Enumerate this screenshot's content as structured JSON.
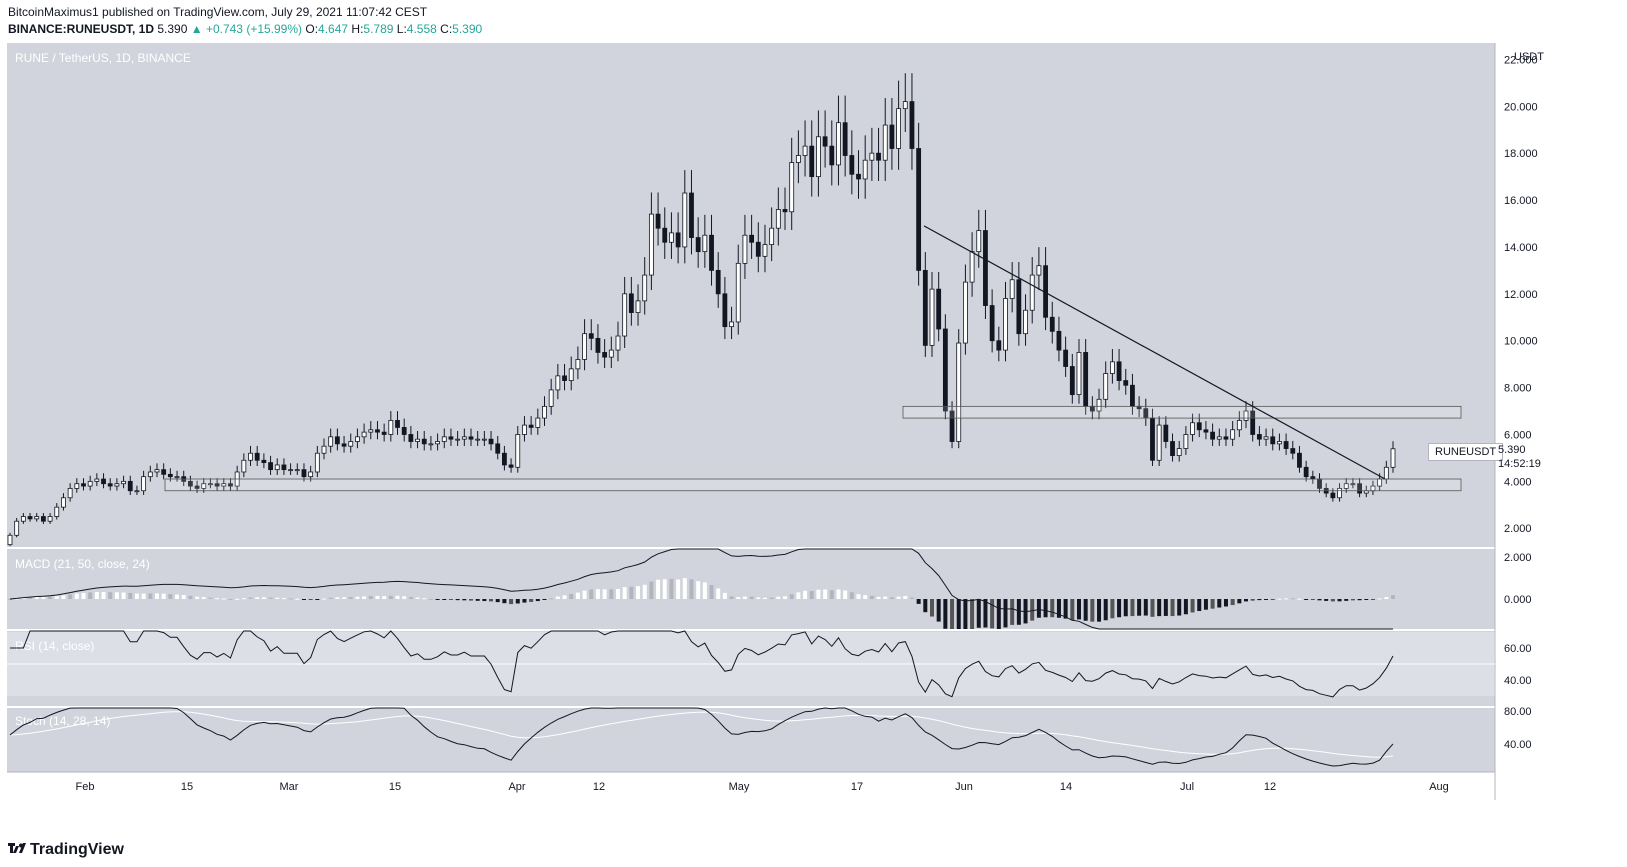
{
  "header": {
    "publish_line": "BitcoinMaximus1 published on TradingView.com, July 29, 2021 11:07:42 CEST",
    "symbol": "BINANCE:RUNEUSDT, 1D",
    "last": "5.390",
    "change": "▲ +0.743 (+15.99%)",
    "o_label": "O:",
    "o_val": "4.647",
    "h_label": "H:",
    "h_val": "5.789",
    "l_label": "L:",
    "l_val": "4.558",
    "c_label": "C:",
    "c_val": "5.390"
  },
  "footer": {
    "brand": "TradingView"
  },
  "price_label": {
    "symbol": "RUNEUSDT",
    "price": "5.390",
    "countdown": "14:52:19"
  },
  "colors": {
    "bg": "#d1d4dc",
    "up": "#ffffff",
    "down": "#131722",
    "line": "#131722"
  },
  "chart_data": {
    "type": "candlestick",
    "title": "RUNE / TetherUS, 1D, BINANCE",
    "currency": "USDT",
    "x_ticks": [
      "Feb",
      "15",
      "Mar",
      "15",
      "Apr",
      "12",
      "May",
      "17",
      "Jun",
      "14",
      "Jul",
      "12",
      "Aug"
    ],
    "y_ticks": [
      "2.000",
      "4.000",
      "6.000",
      "8.000",
      "10.000",
      "12.000",
      "14.000",
      "16.000",
      "18.000",
      "20.000",
      "22.000"
    ],
    "ylim": [
      1.2,
      22.7
    ],
    "close": [
      1.7,
      2.3,
      2.5,
      2.4,
      2.5,
      2.3,
      2.5,
      2.9,
      3.3,
      3.7,
      3.9,
      3.8,
      4.0,
      4.1,
      3.9,
      3.8,
      3.9,
      4.0,
      3.6,
      3.6,
      4.2,
      4.4,
      4.5,
      4.3,
      4.2,
      4.2,
      4.0,
      3.8,
      3.7,
      3.9,
      3.9,
      3.8,
      3.9,
      3.8,
      4.4,
      4.9,
      5.2,
      4.9,
      4.8,
      4.5,
      4.7,
      4.5,
      4.5,
      4.5,
      4.2,
      4.4,
      5.2,
      5.5,
      5.9,
      5.6,
      5.5,
      5.7,
      5.9,
      6.1,
      6.2,
      6.1,
      6.0,
      6.6,
      6.3,
      6.0,
      5.7,
      5.8,
      5.6,
      5.6,
      5.7,
      5.9,
      5.8,
      5.8,
      5.9,
      5.8,
      5.8,
      5.8,
      5.6,
      5.2,
      4.7,
      4.6,
      6.0,
      6.4,
      6.3,
      6.7,
      7.2,
      7.9,
      8.5,
      8.3,
      8.8,
      9.2,
      10.3,
      10.1,
      9.5,
      9.3,
      9.6,
      10.2,
      12.0,
      11.2,
      11.7,
      12.8,
      15.4,
      14.8,
      14.2,
      14.6,
      14.0,
      16.3,
      14.4,
      13.8,
      14.5,
      13.0,
      12.0,
      10.6,
      10.8,
      13.3,
      14.5,
      14.2,
      13.6,
      14.1,
      14.8,
      15.6,
      15.5,
      17.6,
      17.9,
      18.3,
      17.0,
      18.7,
      18.3,
      17.5,
      19.3,
      17.9,
      17.1,
      16.9,
      17.7,
      18.0,
      17.7,
      19.2,
      18.2,
      19.9,
      20.2,
      18.2,
      13.0,
      9.8,
      12.2,
      10.5,
      7.0,
      5.7,
      9.9,
      12.5,
      13.8,
      14.7,
      11.5,
      10.0,
      9.6,
      11.8,
      12.6,
      10.3,
      11.3,
      12.8,
      13.2,
      11.0,
      10.4,
      9.6,
      8.9,
      7.7,
      9.5,
      7.2,
      7.0,
      7.5,
      8.6,
      9.1,
      8.3,
      8.1,
      7.2,
      7.1,
      6.7,
      4.9,
      6.4,
      5.7,
      5.1,
      5.4,
      6.0,
      6.5,
      6.2,
      6.1,
      5.8,
      5.9,
      5.8,
      6.2,
      6.6,
      7.0,
      6.0,
      5.8,
      5.9,
      5.6,
      5.7,
      5.4,
      5.2,
      4.6,
      4.2,
      4.1,
      3.7,
      3.5,
      3.3,
      3.7,
      3.9,
      3.9,
      3.5,
      3.6,
      3.8,
      4.1,
      4.6,
      5.39
    ],
    "annotations": {
      "trendline": {
        "from": {
          "date": "May 24",
          "price": 14.9
        },
        "to": {
          "date": "Jul 27",
          "price": 4.1
        }
      },
      "resistance_zone": [
        6.7,
        7.2
      ],
      "support_zone": [
        3.6,
        4.1
      ]
    },
    "indicators": [
      {
        "name": "MACD (21, 50, close, 24)",
        "y_ticks": [
          "2.000",
          "0.000"
        ]
      },
      {
        "name": "RSI (14, close)",
        "y_ticks": [
          "60.00",
          "40.00"
        ]
      },
      {
        "name": "Stoch (14, 28, 14)",
        "y_ticks": [
          "80.00",
          "40.00"
        ]
      }
    ]
  }
}
